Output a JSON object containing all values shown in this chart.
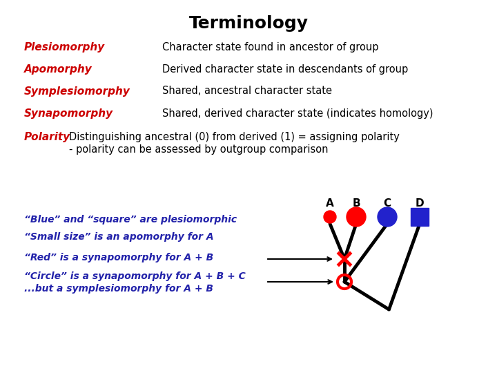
{
  "title": "Terminology",
  "title_fontsize": 18,
  "title_fontweight": "bold",
  "bg_color": "#ffffff",
  "terms": [
    {
      "label": "Plesiomorphy",
      "definition": "Character state found in ancestor of group"
    },
    {
      "label": "Apomorphy",
      "definition": "Derived character state in descendants of group"
    },
    {
      "label": "Symplesiomorphy",
      "definition": "Shared, ancestral character state"
    },
    {
      "label": "Synapomorphy",
      "definition": "Shared, derived character state (indicates homology)"
    }
  ],
  "term_color": "#cc0000",
  "def_color": "#000000",
  "term_fontsize": 11,
  "def_fontsize": 10.5,
  "polarity_label": "Polarity",
  "polarity_text1": "Distinguishing ancestral (0) from derived (1) = assigning polarity",
  "polarity_text2": "- polarity can be assessed by outgroup comparison",
  "italic_texts": [
    "“Blue” and “square” are plesiomorphic",
    "“Small size” is an apomorphy for A",
    "“Red” is a synapomorphy for A + B",
    "“Circle” is a synapomorphy for A + B + C",
    "...but a symplesiomorphy for A + B"
  ],
  "italic_color": "#2222aa",
  "italic_fontsize": 10,
  "tree_color": "#000000",
  "red_color": "#ff0000",
  "blue_color": "#2222cc",
  "square_color": "#2222cc",
  "taxon_labels": [
    "A",
    "B",
    "C",
    "D"
  ]
}
